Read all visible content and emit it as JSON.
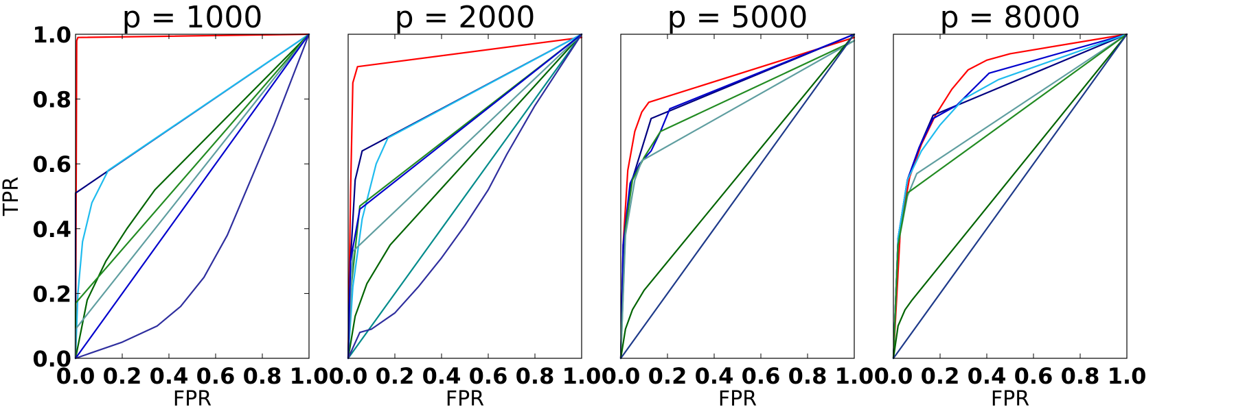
{
  "chart_data": [
    {
      "type": "line",
      "title": "p = 1000",
      "xlabel": "FPR",
      "ylabel": "TPR",
      "xlim": [
        0,
        1
      ],
      "ylim": [
        0,
        1
      ],
      "xticks": [
        "0.0",
        "0.2",
        "0.4",
        "0.6",
        "0.8",
        "1.0"
      ],
      "yticks": [
        "0.0",
        "0.2",
        "0.4",
        "0.6",
        "0.8",
        "1.0"
      ],
      "grid": false,
      "series": [
        {
          "color": "#ff0000",
          "x": [
            0,
            0.005,
            0.01,
            1.0
          ],
          "y": [
            0,
            0.98,
            0.99,
            1.0
          ]
        },
        {
          "color": "#000080",
          "x": [
            0,
            0.0,
            1.0
          ],
          "y": [
            0,
            0.51,
            1.0
          ]
        },
        {
          "color": "#1ebbee",
          "x": [
            0,
            0.01,
            0.03,
            0.07,
            0.14,
            1.0
          ],
          "y": [
            0,
            0.2,
            0.36,
            0.48,
            0.58,
            1.0
          ]
        },
        {
          "color": "#006400",
          "x": [
            0,
            0.05,
            0.13,
            0.22,
            0.34,
            1.0
          ],
          "y": [
            0,
            0.18,
            0.3,
            0.4,
            0.52,
            1.0
          ]
        },
        {
          "color": "#228b22",
          "x": [
            0,
            0.0,
            1.0
          ],
          "y": [
            0,
            0.17,
            1.0
          ]
        },
        {
          "color": "#5f9ea0",
          "x": [
            0,
            0.0,
            1.0
          ],
          "y": [
            0,
            0.09,
            1.0
          ]
        },
        {
          "color": "#0000cd",
          "x": [
            0,
            1.0
          ],
          "y": [
            0,
            1.0
          ]
        },
        {
          "color": "#2e2e9e",
          "x": [
            0,
            0.2,
            0.35,
            0.45,
            0.55,
            0.65,
            0.75,
            0.85,
            1.0
          ],
          "y": [
            0,
            0.05,
            0.1,
            0.16,
            0.25,
            0.38,
            0.55,
            0.72,
            1.0
          ]
        }
      ]
    },
    {
      "type": "line",
      "title": "p = 2000",
      "xlabel": "FPR",
      "ylabel": "",
      "xlim": [
        0,
        1
      ],
      "ylim": [
        0,
        1
      ],
      "xticks": [
        "0.0",
        "0.2",
        "0.4",
        "0.6",
        "0.8",
        "1.0"
      ],
      "yticks": [],
      "grid": false,
      "series": [
        {
          "color": "#ff0000",
          "x": [
            0,
            0.01,
            0.02,
            0.04,
            1.0
          ],
          "y": [
            0,
            0.5,
            0.85,
            0.9,
            0.99
          ]
        },
        {
          "color": "#000080",
          "x": [
            0,
            0.01,
            0.03,
            0.06,
            1.0
          ],
          "y": [
            0,
            0.3,
            0.55,
            0.64,
            1.0
          ]
        },
        {
          "color": "#1ebbee",
          "x": [
            0,
            0.02,
            0.06,
            0.12,
            0.17,
            1.0
          ],
          "y": [
            0,
            0.22,
            0.43,
            0.6,
            0.68,
            1.0
          ]
        },
        {
          "color": "#006400",
          "x": [
            0,
            0.03,
            0.08,
            0.18,
            1.0
          ],
          "y": [
            0,
            0.13,
            0.23,
            0.35,
            1.0
          ]
        },
        {
          "color": "#228b22",
          "x": [
            0,
            0.01,
            0.05,
            1.0
          ],
          "y": [
            0,
            0.2,
            0.47,
            1.0
          ]
        },
        {
          "color": "#5f9ea0",
          "x": [
            0,
            0.02,
            1.0
          ],
          "y": [
            0,
            0.33,
            1.0
          ]
        },
        {
          "color": "#0000cd",
          "x": [
            0,
            0.01,
            0.05,
            1.0
          ],
          "y": [
            0,
            0.3,
            0.46,
            1.0
          ]
        },
        {
          "color": "#008b8b",
          "x": [
            0,
            1.0
          ],
          "y": [
            0,
            1.0
          ]
        },
        {
          "color": "#2e2e9e",
          "x": [
            0,
            0.05,
            0.1,
            0.2,
            0.3,
            0.4,
            0.5,
            0.6,
            0.68,
            0.8,
            1.0
          ],
          "y": [
            0,
            0.08,
            0.09,
            0.14,
            0.22,
            0.31,
            0.41,
            0.52,
            0.63,
            0.78,
            1.0
          ]
        }
      ]
    },
    {
      "type": "line",
      "title": "p = 5000",
      "xlabel": "FPR",
      "ylabel": "",
      "xlim": [
        0,
        1
      ],
      "ylim": [
        0,
        1
      ],
      "xticks": [
        "0.0",
        "0.2",
        "0.4",
        "0.6",
        "0.8",
        "1.0"
      ],
      "yticks": [],
      "grid": false,
      "series": [
        {
          "color": "#ff0000",
          "x": [
            0,
            0.01,
            0.03,
            0.06,
            0.09,
            0.12,
            1.0
          ],
          "y": [
            0,
            0.35,
            0.58,
            0.7,
            0.76,
            0.79,
            0.99
          ]
        },
        {
          "color": "#000080",
          "x": [
            0,
            0.01,
            0.04,
            0.07,
            0.13,
            1.0
          ],
          "y": [
            0,
            0.33,
            0.53,
            0.6,
            0.74,
            1.0
          ]
        },
        {
          "color": "#0000cd",
          "x": [
            0,
            0.01,
            0.04,
            0.08,
            0.13,
            0.17,
            0.21,
            1.0
          ],
          "y": [
            0,
            0.35,
            0.54,
            0.6,
            0.64,
            0.7,
            0.77,
            1.0
          ]
        },
        {
          "color": "#228b22",
          "x": [
            0,
            0.02,
            0.05,
            0.1,
            0.17,
            1.0
          ],
          "y": [
            0,
            0.4,
            0.55,
            0.62,
            0.7,
            0.98
          ]
        },
        {
          "color": "#5f9ea0",
          "x": [
            0,
            0.02,
            0.06,
            0.09,
            1.0
          ],
          "y": [
            0,
            0.38,
            0.55,
            0.61,
            0.98
          ]
        },
        {
          "color": "#006400",
          "x": [
            0,
            0.02,
            0.05,
            0.1,
            1.0
          ],
          "y": [
            0,
            0.09,
            0.15,
            0.21,
            1.0
          ]
        },
        {
          "color": "#1e3a8a",
          "x": [
            0,
            1.0
          ],
          "y": [
            0,
            1.0
          ]
        }
      ]
    },
    {
      "type": "line",
      "title": "p = 8000",
      "xlabel": "FPR",
      "ylabel": "",
      "xlim": [
        0,
        1
      ],
      "ylim": [
        0,
        1
      ],
      "xticks": [
        "0.0",
        "0.2",
        "0.4",
        "0.6",
        "0.8",
        "1.0"
      ],
      "yticks": [],
      "grid": false,
      "series": [
        {
          "color": "#ff0000",
          "x": [
            0,
            0.03,
            0.07,
            0.12,
            0.18,
            0.25,
            0.32,
            0.4,
            0.5,
            1.0
          ],
          "y": [
            0,
            0.4,
            0.56,
            0.66,
            0.75,
            0.83,
            0.89,
            0.92,
            0.94,
            1.0
          ]
        },
        {
          "color": "#000080",
          "x": [
            0,
            0.02,
            0.06,
            0.11,
            0.17,
            1.0
          ],
          "y": [
            0,
            0.37,
            0.55,
            0.65,
            0.75,
            1.0
          ]
        },
        {
          "color": "#0000cd",
          "x": [
            0,
            0.02,
            0.06,
            0.11,
            0.17,
            0.27,
            0.41,
            1.0
          ],
          "y": [
            0,
            0.37,
            0.55,
            0.65,
            0.74,
            0.78,
            0.88,
            1.0
          ]
        },
        {
          "color": "#1ebbee",
          "x": [
            0,
            0.02,
            0.06,
            0.12,
            0.2,
            0.3,
            0.45,
            1.0
          ],
          "y": [
            0,
            0.37,
            0.55,
            0.64,
            0.72,
            0.8,
            0.86,
            1.0
          ]
        },
        {
          "color": "#5f9ea0",
          "x": [
            0,
            0.02,
            0.06,
            0.1,
            1.0
          ],
          "y": [
            0,
            0.35,
            0.5,
            0.57,
            1.0
          ]
        },
        {
          "color": "#228b22",
          "x": [
            0,
            0.02,
            0.06,
            1.0
          ],
          "y": [
            0,
            0.35,
            0.51,
            1.0
          ]
        },
        {
          "color": "#006400",
          "x": [
            0,
            0.02,
            0.05,
            0.08,
            1.0
          ],
          "y": [
            0,
            0.1,
            0.15,
            0.18,
            1.0
          ]
        },
        {
          "color": "#1e3a8a",
          "x": [
            0,
            1.0
          ],
          "y": [
            0,
            1.0
          ]
        }
      ]
    }
  ]
}
